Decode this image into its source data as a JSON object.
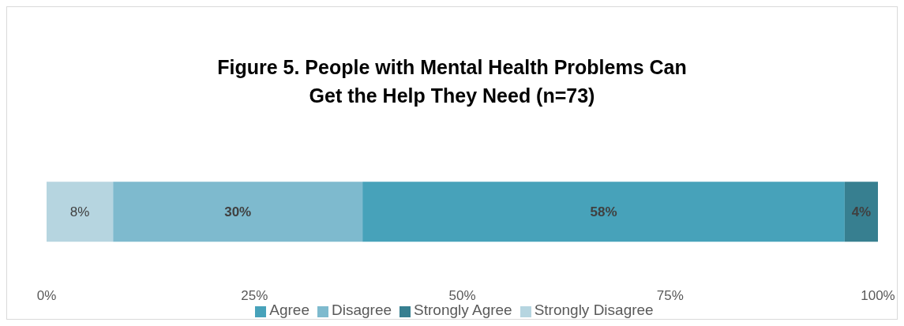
{
  "chart_data": {
    "type": "bar",
    "orientation": "horizontal",
    "stacked": true,
    "title": "Figure 5. People with Mental Health Problems Can Get the Help They Need (n=73)",
    "categories": [
      null
    ],
    "series": [
      {
        "name": "Strongly Disagree",
        "color": "#b6d5e0",
        "values": [
          8
        ],
        "value_labels": [
          "8%"
        ]
      },
      {
        "name": "Disagree",
        "color": "#7ebace",
        "values": [
          30
        ],
        "value_labels": [
          "30%"
        ]
      },
      {
        "name": "Agree",
        "color": "#47a2ba",
        "values": [
          58
        ],
        "value_labels": [
          "58%"
        ]
      },
      {
        "name": "Strongly Agree",
        "color": "#377f90",
        "values": [
          4
        ],
        "value_labels": [
          "4%"
        ]
      }
    ],
    "xlim": [
      0,
      100
    ],
    "xticks": [
      {
        "value": 0,
        "label": "0%"
      },
      {
        "value": 25,
        "label": "25%"
      },
      {
        "value": 50,
        "label": "50%"
      },
      {
        "value": 75,
        "label": "75%"
      },
      {
        "value": 100,
        "label": "100%"
      }
    ],
    "grid": false,
    "legend": "bottom"
  }
}
